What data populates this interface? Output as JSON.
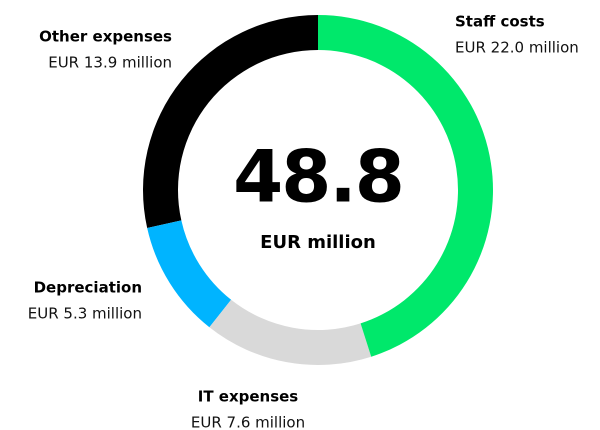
{
  "chart_data": {
    "type": "donut",
    "center_value": 48.8,
    "center_label": "EUR million",
    "categories": [
      "Staff costs",
      "IT expenses",
      "Depreciation",
      "Other expenses"
    ],
    "values": [
      22.0,
      7.6,
      5.3,
      13.9
    ],
    "value_labels": [
      "EUR 22.0 million",
      "EUR 7.6 million",
      "EUR 5.3 million",
      "EUR 13.9 million"
    ],
    "colors": [
      "#00e86b",
      "#d9d9d9",
      "#00b4ff",
      "#000000"
    ]
  }
}
